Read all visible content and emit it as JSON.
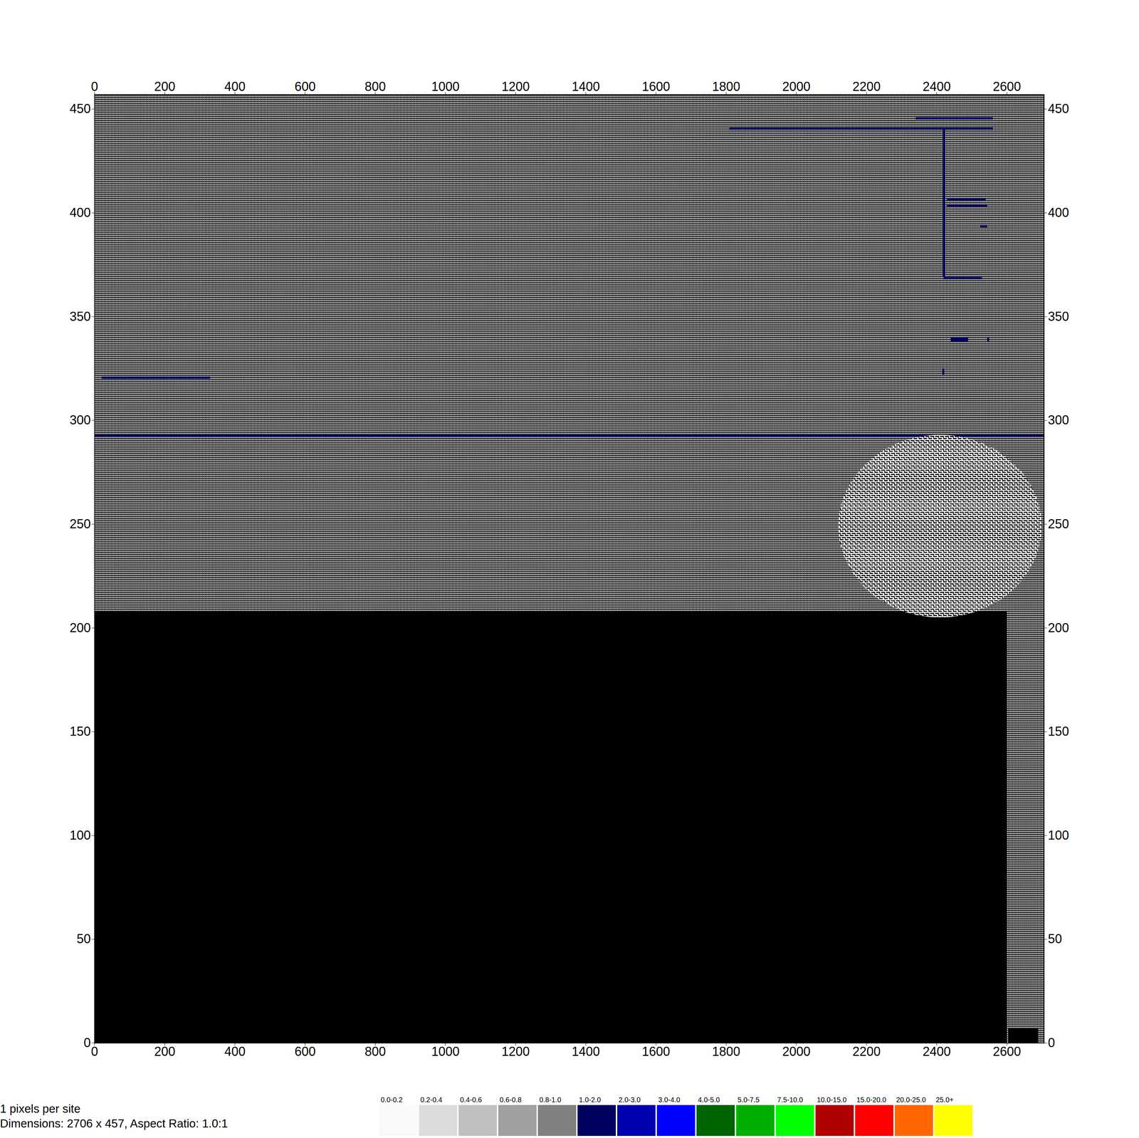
{
  "chart_data": {
    "type": "heatmap",
    "xlim": [
      0,
      2706
    ],
    "ylim": [
      0,
      457
    ],
    "xticks": [
      0,
      200,
      400,
      600,
      800,
      1000,
      1200,
      1400,
      1600,
      1800,
      2000,
      2200,
      2400,
      2600
    ],
    "yticks": [
      0,
      50,
      100,
      150,
      200,
      250,
      300,
      350,
      400,
      450
    ],
    "color_bins": {
      "thresholds": [
        0.2,
        0.4,
        0.6,
        0.8,
        1.0,
        2.0,
        3.0,
        4.0,
        5.0,
        7.5,
        10.0,
        15.0,
        20.0,
        25.0
      ],
      "labels": [
        "0.0-0.2",
        "0.2-0.4",
        "0.4-0.6",
        "0.6-0.8",
        "0.8-1.0",
        "1.0-2.0",
        "2.0-3.0",
        "3.0-4.0",
        "4.0-5.0",
        "5.0-7.5",
        "7.5-10.0",
        "10.0-15.0",
        "15.0-20.0",
        "20.0-25.0",
        "25.0+"
      ],
      "colors": [
        "#f9f9f9",
        "#dcdcdc",
        "#c0c0c0",
        "#a0a0a0",
        "#808080",
        "#000060",
        "#0000b0",
        "#0000ff",
        "#006400",
        "#00b000",
        "#00ff00",
        "#b00000",
        "#ff0000",
        "#ff6600",
        "#ffff00"
      ]
    },
    "cells": [
      [
        1810,
        2560,
        440,
        441,
        1.5
      ],
      [
        2340,
        2560,
        445,
        446,
        1.5
      ],
      [
        2418,
        2424,
        369,
        440,
        1.5
      ],
      [
        2420,
        2530,
        368,
        369,
        1.5
      ],
      [
        2430,
        2540,
        406,
        407,
        1.5
      ],
      [
        2430,
        2545,
        403,
        404,
        1.5
      ],
      [
        2525,
        2545,
        393,
        394,
        1.5
      ],
      [
        2440,
        2490,
        338,
        340,
        1.5
      ],
      [
        2545,
        2550,
        338,
        340,
        1.5
      ],
      [
        2417,
        2422,
        322,
        325,
        1.5
      ],
      [
        20,
        330,
        320,
        321,
        1.5
      ],
      [
        0,
        2706,
        292,
        293,
        1.5
      ]
    ],
    "obstacles": [
      [
        0,
        2600,
        0,
        208
      ],
      [
        2605,
        2690,
        0,
        7
      ]
    ],
    "disturbed_region": {
      "x0": 2120,
      "x1": 2700,
      "y0": 205,
      "y1": 293
    },
    "notes": [
      "1 pixels per site",
      "Dimensions: 2706 x 457, Aspect Ratio: 1.0:1"
    ]
  }
}
